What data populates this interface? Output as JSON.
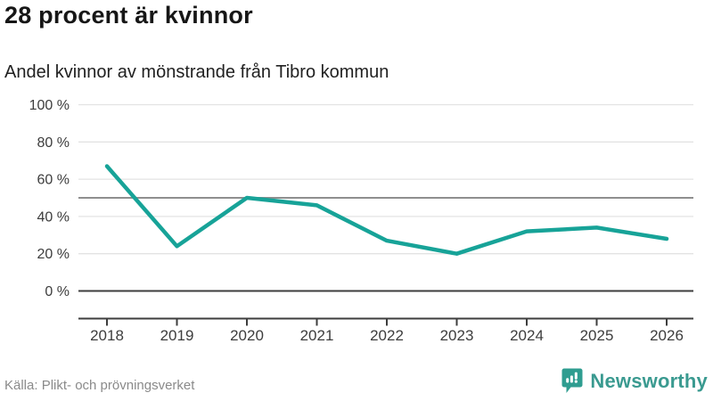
{
  "header": {
    "title": "28 procent är kvinnor",
    "subtitle": "Andel kvinnor av mönstrande från Tibro kommun"
  },
  "chart_data": {
    "type": "line",
    "categories": [
      "2018",
      "2019",
      "2020",
      "2021",
      "2022",
      "2023",
      "2024",
      "2025",
      "2026"
    ],
    "series": [
      {
        "name": "Andel kvinnor av mönstrande",
        "values": [
          67,
          24,
          50,
          46,
          27,
          20,
          32,
          34,
          28
        ]
      }
    ],
    "title": "28 procent är kvinnor",
    "subtitle": "Andel kvinnor av mönstrande från Tibro kommun",
    "xlabel": "",
    "ylabel": "",
    "unit": "%",
    "ylim": [
      0,
      100
    ],
    "yticks": [
      0,
      20,
      40,
      60,
      80,
      100
    ],
    "ytick_labels": [
      "0 %",
      "20 %",
      "40 %",
      "60 %",
      "80 %",
      "100 %"
    ],
    "refline_value": 50,
    "grid": "horizontal",
    "legend": "none",
    "line_color": "#17a398",
    "gridline_color": "#e3e3e3",
    "refline_color": "#8f8f8f",
    "axis_color": "#3d3d3d"
  },
  "footer": {
    "source": "Källa: Plikt- och prövningsverket",
    "logo_text": "Newsworthy",
    "logo_color": "#3a9a90",
    "logo_icon_color": "#2f9d90"
  }
}
